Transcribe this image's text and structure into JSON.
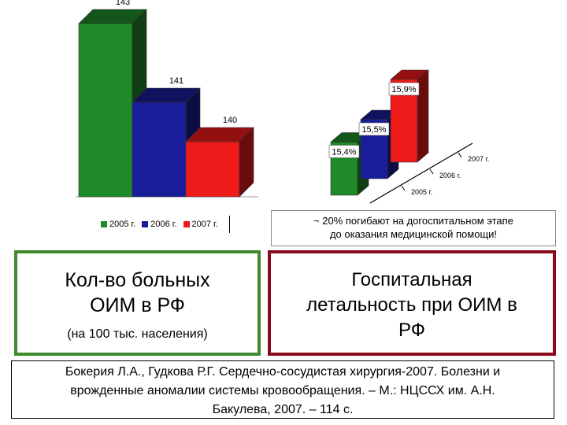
{
  "colors": {
    "green": "#1f8a28",
    "blue": "#1a1d9a",
    "red": "#ee1a1a",
    "green_box_border": "#3f8a2c",
    "red_box_border": "#8a0a1c"
  },
  "chart_data": [
    {
      "type": "bar",
      "style": "3d",
      "categories": [
        "2005 г.",
        "2006 г.",
        "2007 г."
      ],
      "values": [
        143,
        141,
        140
      ],
      "data_labels": [
        "143",
        "141",
        "140"
      ],
      "legend": [
        "2005 г.",
        "2006 г.",
        "2007 г."
      ],
      "legend_position": "bottom"
    },
    {
      "type": "bar",
      "style": "3d-stepped",
      "categories": [
        "2005 г.",
        "2006 г.",
        "2007 г."
      ],
      "values": [
        15.4,
        15.5,
        15.9
      ],
      "data_labels": [
        "15,4%",
        "15,5%",
        "15,9%"
      ],
      "axis_labels": [
        "2005 г.",
        "2006 г.",
        "2007 г."
      ]
    }
  ],
  "note": {
    "line1": "~ 20% погибают на догоспитальном этапе",
    "line2": "до оказания медицинской помощи!"
  },
  "box_left": {
    "title_line1": "Кол-во больных",
    "title_line2": "ОИМ в РФ",
    "subtitle": "(на 100 тыс. населения)"
  },
  "box_right": {
    "line1": "Госпитальная",
    "line2": "летальность при ОИМ в",
    "line3": "РФ"
  },
  "citation": {
    "line1": "Бокерия Л.А., Гудкова Р.Г. Сердечно-сосудистая хирургия-2007. Болезни и",
    "line2": "врожденные аномалии системы кровообращения. – М.: НЦССХ им. А.Н.",
    "line3": "Бакулева, 2007. – 114 с."
  }
}
